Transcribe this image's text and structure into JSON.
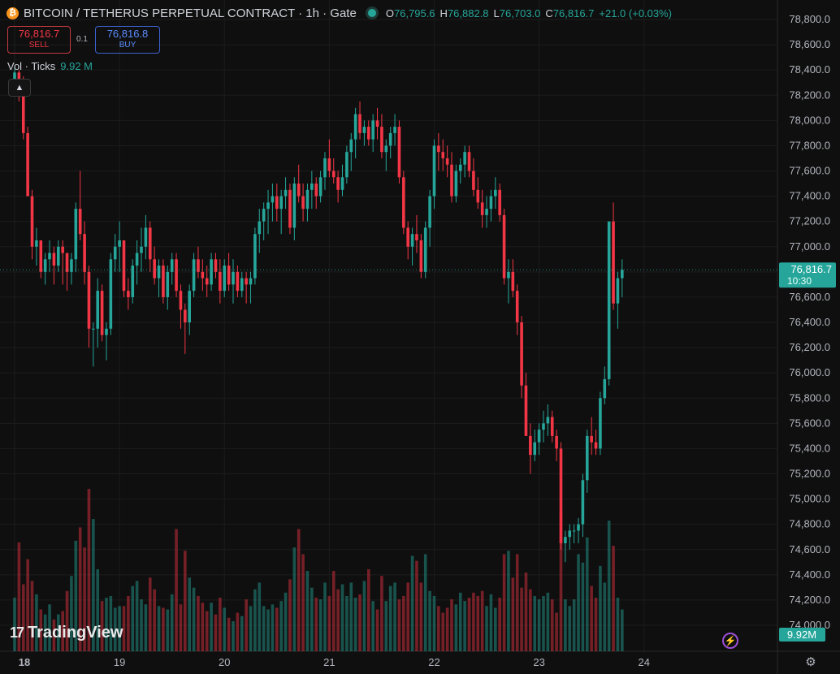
{
  "header": {
    "coin_glyph": "₿",
    "title": "BITCOIN / TETHERUS PERPETUAL CONTRACT · 1h · Gate",
    "ohlc": {
      "o_label": "O",
      "o": "76,795.6",
      "h_label": "H",
      "h": "76,882.8",
      "l_label": "L",
      "l": "76,703.0",
      "c_label": "C",
      "c": "76,816.7",
      "change": "+21.0 (+0.03%)"
    }
  },
  "trade": {
    "sell_price": "76,816.7",
    "sell_label": "SELL",
    "spread": "0.1",
    "buy_price": "76,816.8",
    "buy_label": "BUY"
  },
  "volume_legend": {
    "label": "Vol · Ticks",
    "value": "9.92 M"
  },
  "logo": {
    "mark": "17",
    "text": "TradingView"
  },
  "icons": {
    "collapse": "chevron-up-icon",
    "bolt": "lightning-icon",
    "settings": "gear-icon"
  },
  "colors": {
    "up": "#26a69a",
    "down": "#f23645",
    "background": "#0f0f0f"
  },
  "chart_data": {
    "type": "candlestick",
    "interval": "1h",
    "y_ticks": [
      74000,
      74200,
      74400,
      74600,
      74800,
      75000,
      75200,
      75400,
      75600,
      75800,
      76000,
      76200,
      76400,
      76600,
      76800,
      77000,
      77200,
      77400,
      77600,
      77800,
      78000,
      78200,
      78400,
      78600,
      78800
    ],
    "y_tick_labels": [
      "74,000.0",
      "74,200.0",
      "74,400.0",
      "74,600.0",
      "74,800.0",
      "75,000.0",
      "75,200.0",
      "75,400.0",
      "75,600.0",
      "75,800.0",
      "76,000.0",
      "76,200.0",
      "76,400.0",
      "76,600.0",
      "76,800.0",
      "77,000.0",
      "77,200.0",
      "77,400.0",
      "77,600.0",
      "77,800.0",
      "78,000.0",
      "78,200.0",
      "78,400.0",
      "78,600.0",
      "78,800.0"
    ],
    "ylim": [
      73880,
      78960
    ],
    "x_labels": [
      {
        "label": "18",
        "index": 0
      },
      {
        "label": "19",
        "index": 24
      },
      {
        "label": "20",
        "index": 48
      },
      {
        "label": "21",
        "index": 72
      },
      {
        "label": "22",
        "index": 96
      },
      {
        "label": "23",
        "index": 120
      },
      {
        "label": "24",
        "index": 144
      }
    ],
    "last_price": {
      "value": 76816.7,
      "label": "76,816.7",
      "countdown": "10:30"
    },
    "volume_label": "9.92M",
    "candles": [
      [
        78300,
        78420,
        78200,
        78380,
        3.2
      ],
      [
        78380,
        78400,
        78150,
        78250,
        6.5
      ],
      [
        78250,
        78350,
        77850,
        77900,
        4.0
      ],
      [
        77900,
        77950,
        77400,
        77400,
        5.5
      ],
      [
        77400,
        77450,
        76900,
        77000,
        4.2
      ],
      [
        77000,
        77150,
        76850,
        77050,
        3.4
      ],
      [
        77050,
        77050,
        76750,
        76800,
        2.5
      ],
      [
        76800,
        76950,
        76700,
        76900,
        2.2
      ],
      [
        76900,
        77050,
        76800,
        76950,
        2.8
      ],
      [
        76950,
        77000,
        76700,
        76850,
        1.9
      ],
      [
        76850,
        77050,
        76800,
        77000,
        2.2
      ],
      [
        77000,
        77050,
        76700,
        76950,
        2.4
      ],
      [
        76950,
        76950,
        76650,
        76800,
        3.6
      ],
      [
        76800,
        76950,
        76700,
        76900,
        4.5
      ],
      [
        76900,
        77350,
        76800,
        77300,
        6.6
      ],
      [
        77300,
        77600,
        77050,
        77100,
        7.4
      ],
      [
        77100,
        77200,
        76700,
        76800,
        6.2
      ],
      [
        76800,
        76850,
        76200,
        76350,
        9.7
      ],
      [
        76350,
        76400,
        76050,
        76350,
        7.9
      ],
      [
        76350,
        76750,
        76200,
        76650,
        4.9
      ],
      [
        76650,
        76700,
        76250,
        76300,
        3.0
      ],
      [
        76300,
        76400,
        76100,
        76350,
        3.2
      ],
      [
        76350,
        76950,
        76300,
        76900,
        3.3
      ],
      [
        76900,
        77100,
        76800,
        77000,
        2.6
      ],
      [
        77000,
        77200,
        76800,
        77050,
        2.7
      ],
      [
        77050,
        77050,
        76600,
        76650,
        2.7
      ],
      [
        76650,
        76750,
        76500,
        76600,
        3.3
      ],
      [
        76600,
        76900,
        76550,
        76850,
        3.9
      ],
      [
        76850,
        77050,
        76700,
        76950,
        4.2
      ],
      [
        76950,
        77150,
        76800,
        77000,
        3.1
      ],
      [
        77000,
        77250,
        76900,
        77150,
        2.8
      ],
      [
        77150,
        77200,
        76800,
        76900,
        4.4
      ],
      [
        76900,
        77000,
        76700,
        76750,
        3.7
      ],
      [
        76750,
        76900,
        76600,
        76850,
        2.7
      ],
      [
        76850,
        76900,
        76550,
        76600,
        2.6
      ],
      [
        76600,
        76850,
        76500,
        76800,
        2.5
      ],
      [
        76800,
        76950,
        76700,
        76900,
        3.4
      ],
      [
        76900,
        76950,
        76600,
        76650,
        7.3
      ],
      [
        76650,
        76700,
        76350,
        76500,
        2.8
      ],
      [
        76500,
        76550,
        76150,
        76400,
        6.0
      ],
      [
        76400,
        76700,
        76300,
        76650,
        4.4
      ],
      [
        76650,
        76950,
        76600,
        76900,
        3.8
      ],
      [
        76900,
        77000,
        76750,
        76800,
        3.3
      ],
      [
        76800,
        76900,
        76650,
        76750,
        2.9
      ],
      [
        76750,
        76850,
        76600,
        76700,
        2.4
      ],
      [
        76700,
        76950,
        76650,
        76900,
        2.9
      ],
      [
        76900,
        76950,
        76750,
        76800,
        2.2
      ],
      [
        76800,
        76900,
        76550,
        76650,
        3.2
      ],
      [
        76650,
        76900,
        76600,
        76850,
        2.6
      ],
      [
        76850,
        76950,
        76650,
        76700,
        2.0
      ],
      [
        76700,
        76900,
        76550,
        76800,
        1.8
      ],
      [
        76800,
        76850,
        76600,
        76650,
        2.3
      ],
      [
        76650,
        76800,
        76600,
        76750,
        2.1
      ],
      [
        76750,
        76800,
        76550,
        76700,
        3.1
      ],
      [
        76700,
        76800,
        76550,
        76750,
        2.7
      ],
      [
        76750,
        77150,
        76700,
        77100,
        3.7
      ],
      [
        77100,
        77300,
        76950,
        77200,
        4.1
      ],
      [
        77200,
        77350,
        77050,
        77300,
        2.7
      ],
      [
        77300,
        77450,
        77100,
        77350,
        2.5
      ],
      [
        77350,
        77500,
        77200,
        77400,
        2.8
      ],
      [
        77400,
        77500,
        77200,
        77300,
        2.6
      ],
      [
        77300,
        77450,
        77100,
        77400,
        3.0
      ],
      [
        77400,
        77550,
        77300,
        77450,
        3.5
      ],
      [
        77450,
        77500,
        77100,
        77150,
        4.3
      ],
      [
        77150,
        77550,
        77050,
        77500,
        6.2
      ],
      [
        77500,
        77650,
        77350,
        77400,
        7.3
      ],
      [
        77400,
        77500,
        77200,
        77300,
        5.8
      ],
      [
        77300,
        77500,
        77200,
        77450,
        4.8
      ],
      [
        77450,
        77600,
        77300,
        77500,
        3.8
      ],
      [
        77500,
        77550,
        77300,
        77400,
        3.2
      ],
      [
        77400,
        77600,
        77350,
        77550,
        3.1
      ],
      [
        77550,
        77750,
        77450,
        77700,
        4.1
      ],
      [
        77700,
        77850,
        77550,
        77600,
        3.3
      ],
      [
        77600,
        77700,
        77500,
        77550,
        4.8
      ],
      [
        77550,
        77600,
        77350,
        77450,
        3.7
      ],
      [
        77450,
        77650,
        77400,
        77550,
        4.0
      ],
      [
        77550,
        77800,
        77500,
        77750,
        3.3
      ],
      [
        77750,
        77900,
        77600,
        77850,
        4.1
      ],
      [
        77850,
        78100,
        77700,
        78050,
        3.2
      ],
      [
        78050,
        78150,
        77850,
        77900,
        3.4
      ],
      [
        77900,
        78000,
        77800,
        77950,
        4.2
      ],
      [
        77950,
        78000,
        77800,
        77850,
        4.9
      ],
      [
        77850,
        78050,
        77750,
        78000,
        3.0
      ],
      [
        78000,
        78100,
        77850,
        77950,
        2.5
      ],
      [
        77950,
        78050,
        77700,
        77750,
        4.5
      ],
      [
        77750,
        77850,
        77600,
        77800,
        3.0
      ],
      [
        77800,
        77950,
        77700,
        77900,
        3.9
      ],
      [
        77900,
        78050,
        77800,
        77950,
        4.1
      ],
      [
        77950,
        78000,
        77500,
        77550,
        3.1
      ],
      [
        77550,
        77600,
        77100,
        77150,
        3.3
      ],
      [
        77150,
        77200,
        76900,
        77000,
        4.1
      ],
      [
        77000,
        77150,
        76850,
        77100,
        5.7
      ],
      [
        77100,
        77250,
        76950,
        77050,
        5.4
      ],
      [
        77050,
        77100,
        76750,
        76800,
        4.1
      ],
      [
        76800,
        77200,
        76750,
        77150,
        5.8
      ],
      [
        77150,
        77450,
        77000,
        77400,
        3.6
      ],
      [
        77400,
        77850,
        77300,
        77800,
        3.3
      ],
      [
        77800,
        77900,
        77600,
        77750,
        2.7
      ],
      [
        77750,
        77850,
        77600,
        77700,
        2.3
      ],
      [
        77700,
        77800,
        77550,
        77650,
        2.6
      ],
      [
        77650,
        77750,
        77350,
        77400,
        3.1
      ],
      [
        77400,
        77650,
        77350,
        77600,
        2.8
      ],
      [
        77600,
        77700,
        77500,
        77650,
        3.5
      ],
      [
        77650,
        77800,
        77550,
        77750,
        3.0
      ],
      [
        77750,
        77800,
        77550,
        77600,
        3.2
      ],
      [
        77600,
        77700,
        77400,
        77450,
        3.5
      ],
      [
        77450,
        77550,
        77300,
        77350,
        3.3
      ],
      [
        77350,
        77450,
        77150,
        77250,
        3.6
      ],
      [
        77250,
        77400,
        77150,
        77300,
        2.7
      ],
      [
        77300,
        77450,
        77200,
        77400,
        3.4
      ],
      [
        77400,
        77550,
        77300,
        77450,
        2.6
      ],
      [
        77450,
        77500,
        77200,
        77250,
        3.2
      ],
      [
        77250,
        77300,
        76700,
        76750,
        5.8
      ],
      [
        76750,
        76900,
        76550,
        76800,
        6.0
      ],
      [
        76800,
        76900,
        76600,
        76650,
        4.4
      ],
      [
        76650,
        76700,
        76300,
        76400,
        5.8
      ],
      [
        76400,
        76450,
        75800,
        75900,
        3.8
      ],
      [
        75900,
        76000,
        75500,
        75500,
        4.7
      ],
      [
        75500,
        75600,
        75200,
        75350,
        3.7
      ],
      [
        75350,
        75550,
        75300,
        75450,
        3.3
      ],
      [
        75450,
        75600,
        75350,
        75550,
        3.1
      ],
      [
        75550,
        75700,
        75450,
        75600,
        3.3
      ],
      [
        75600,
        75750,
        75500,
        75650,
        3.5
      ],
      [
        75650,
        75700,
        75450,
        75500,
        3.1
      ],
      [
        75500,
        75550,
        75300,
        75400,
        2.3
      ],
      [
        75400,
        75450,
        74600,
        74650,
        8.3
      ],
      [
        74650,
        74750,
        74500,
        74700,
        3.1
      ],
      [
        74700,
        74800,
        74600,
        74750,
        2.7
      ],
      [
        74750,
        74800,
        74650,
        74750,
        3.1
      ],
      [
        74750,
        74850,
        74650,
        74800,
        5.8
      ],
      [
        74800,
        75200,
        74700,
        75150,
        5.3
      ],
      [
        75150,
        75550,
        75050,
        75500,
        6.8
      ],
      [
        75500,
        75650,
        75350,
        75450,
        3.9
      ],
      [
        75450,
        75550,
        75350,
        75400,
        3.2
      ],
      [
        75400,
        75850,
        75350,
        75800,
        5.1
      ],
      [
        75800,
        76050,
        75750,
        75950,
        4.1
      ],
      [
        75950,
        77200,
        75900,
        77200,
        7.8
      ],
      [
        77200,
        77350,
        76500,
        76550,
        6.3
      ],
      [
        76550,
        76800,
        76350,
        76750,
        3.2
      ],
      [
        76750,
        76900,
        76600,
        76817,
        2.5
      ]
    ]
  }
}
